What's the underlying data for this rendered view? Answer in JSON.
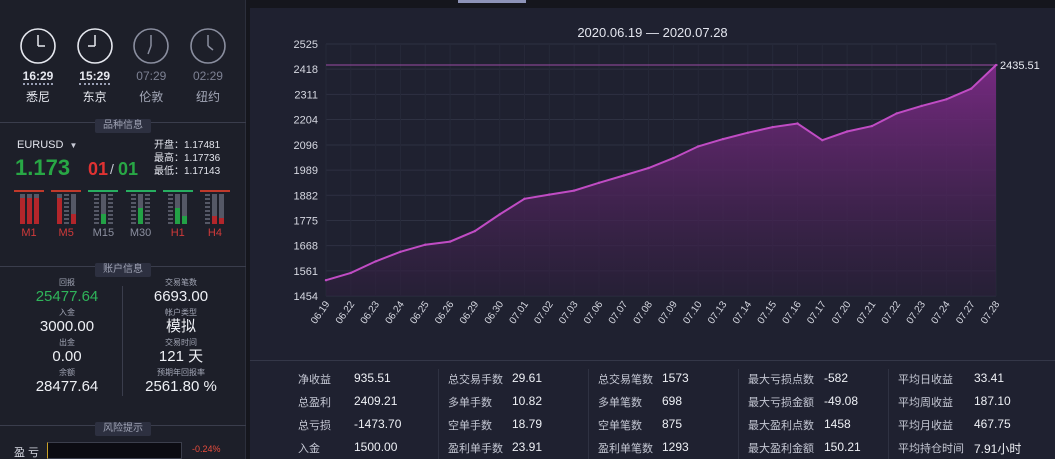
{
  "clocks": [
    {
      "time": "16:29",
      "city": "悉尼",
      "active": true
    },
    {
      "time": "15:29",
      "city": "东京",
      "active": true
    },
    {
      "time": "07:29",
      "city": "伦敦",
      "active": false
    },
    {
      "time": "02:29",
      "city": "纽约",
      "active": false
    }
  ],
  "symbol_section": {
    "title": "品种信息",
    "symbol": "EURUSD",
    "price": "1.173",
    "pip_a": "01",
    "pip_sep": "/",
    "pip_b": "01",
    "open": "开盘：1.17481",
    "high": "最高：1.17736",
    "low": "最低：1.17143"
  },
  "timeframes": [
    "M1",
    "M5",
    "M15",
    "M30",
    "H1",
    "H4"
  ],
  "account_section": {
    "title": "账户信息",
    "left": [
      {
        "key": "回报",
        "value": "25477.64"
      },
      {
        "key": "入金",
        "value": "3000.00"
      },
      {
        "key": "出金",
        "value": "0.00"
      },
      {
        "key": "余额",
        "value": "28477.64"
      }
    ],
    "right": [
      {
        "key": "交易笔数",
        "value": "6693.00"
      },
      {
        "key": "帐户类型",
        "value": "模拟"
      },
      {
        "key": "交易时间",
        "value": "121 天"
      },
      {
        "key": "预期年回报率",
        "value": "2561.80 %"
      }
    ]
  },
  "risk_section": {
    "title": "风险提示",
    "label": "盈 亏",
    "value": "-0.24%"
  },
  "chart_title": "2020.06.19 — 2020.07.28",
  "chart_data": {
    "type": "area",
    "title": "2020.06.19 — 2020.07.28",
    "x": [
      "06.19",
      "06.22",
      "06.23",
      "06.24",
      "06.25",
      "06.26",
      "06.29",
      "06.30",
      "07.01",
      "07.02",
      "07.03",
      "07.06",
      "07.07",
      "07.08",
      "07.09",
      "07.10",
      "07.13",
      "07.14",
      "07.15",
      "07.16",
      "07.17",
      "07.20",
      "07.21",
      "07.22",
      "07.23",
      "07.24",
      "07.27",
      "07.28"
    ],
    "values": [
      1521,
      1552,
      1601,
      1642,
      1672,
      1685,
      1730,
      1801,
      1867,
      1885,
      1902,
      1935,
      1966,
      1998,
      2040,
      2090,
      2121,
      2148,
      2172,
      2187,
      2116,
      2153,
      2176,
      2230,
      2262,
      2290,
      2335,
      2435.51
    ],
    "yticks": [
      1454,
      1561,
      1668,
      1775,
      1882,
      1989,
      2096,
      2204,
      2311,
      2418,
      2525
    ],
    "ylim": [
      1454,
      2525
    ],
    "last_label": "2435.51",
    "colors": {
      "line": "#c04cc4",
      "fill_top": "#7b2a85",
      "fill_bottom": "#2b1f3a"
    }
  },
  "stats": [
    [
      {
        "k": "净收益",
        "v": "935.51"
      },
      {
        "k": "总盈利",
        "v": "2409.21"
      },
      {
        "k": "总亏损",
        "v": "-1473.70"
      },
      {
        "k": "入金",
        "v": "1500.00"
      }
    ],
    [
      {
        "k": "总交易手数",
        "v": "29.61"
      },
      {
        "k": "多单手数",
        "v": "10.82"
      },
      {
        "k": "空单手数",
        "v": "18.79"
      },
      {
        "k": "盈利单手数",
        "v": "23.91"
      }
    ],
    [
      {
        "k": "总交易笔数",
        "v": "1573"
      },
      {
        "k": "多单笔数",
        "v": "698"
      },
      {
        "k": "空单笔数",
        "v": "875"
      },
      {
        "k": "盈利单笔数",
        "v": "1293"
      }
    ],
    [
      {
        "k": "最大亏损点数",
        "v": "-582"
      },
      {
        "k": "最大亏损金额",
        "v": "-49.08"
      },
      {
        "k": "最大盈利点数",
        "v": "1458"
      },
      {
        "k": "最大盈利金额",
        "v": "150.21"
      }
    ],
    [
      {
        "k": "平均日收益",
        "v": "33.41"
      },
      {
        "k": "平均周收益",
        "v": "187.10"
      },
      {
        "k": "平均月收益",
        "v": "467.75"
      },
      {
        "k": "平均持仓时间",
        "v": "7.91小时"
      }
    ]
  ]
}
